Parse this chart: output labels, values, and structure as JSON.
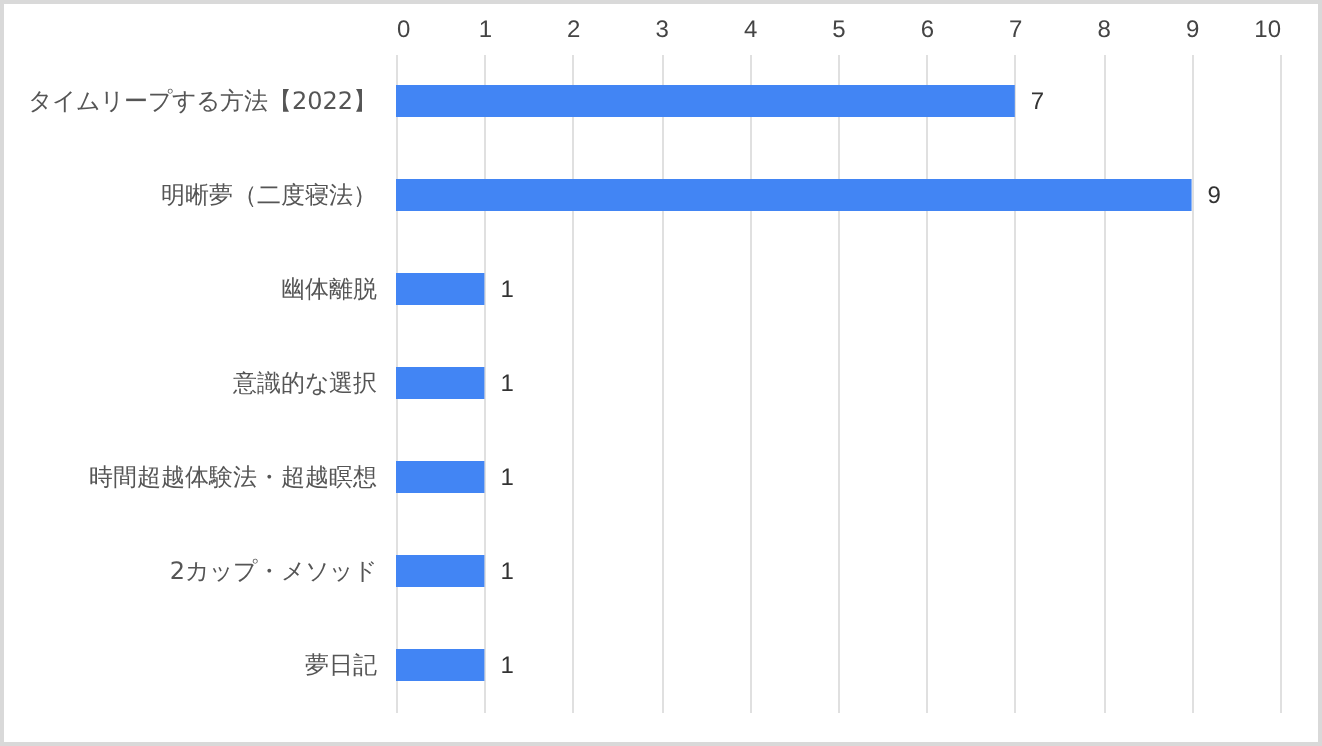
{
  "chart_data": {
    "type": "bar",
    "orientation": "horizontal",
    "categories": [
      "タイムリープする方法【2022】",
      "明晰夢（二度寝法）",
      "幽体離脱",
      "意識的な選択",
      "時間超越体験法・超越瞑想",
      "2カップ・メソッド",
      "夢日記"
    ],
    "values": [
      7,
      9,
      1,
      1,
      1,
      1,
      1
    ],
    "color": "#4285f4",
    "xlim": [
      0,
      10
    ],
    "xticks": [
      0,
      1,
      2,
      3,
      4,
      5,
      6,
      7,
      8,
      9,
      10
    ],
    "grid": "x",
    "data_labels": true
  }
}
